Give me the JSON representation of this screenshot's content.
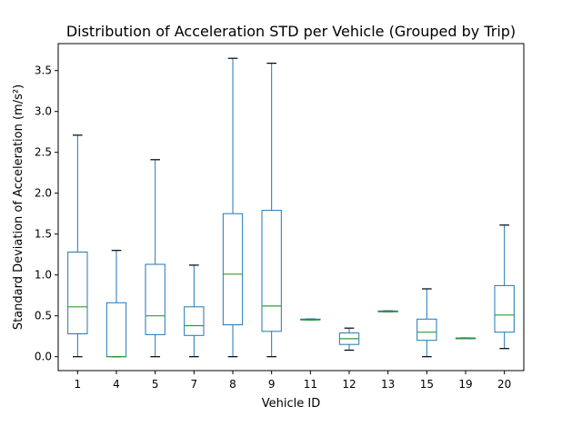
{
  "chart_data": {
    "type": "box",
    "title": "Distribution of Acceleration STD per Vehicle (Grouped by Trip)",
    "xlabel": "Vehicle ID",
    "ylabel": "Standard Deviation of Acceleration (m/s²)",
    "ylim": [
      -0.17,
      3.83
    ],
    "yticks": [
      0.0,
      0.5,
      1.0,
      1.5,
      2.0,
      2.5,
      3.0,
      3.5
    ],
    "ytick_labels": [
      "0.0",
      "0.5",
      "1.0",
      "1.5",
      "2.0",
      "2.5",
      "3.0",
      "3.5"
    ],
    "grid": false,
    "colors": {
      "box": "#1f77b4",
      "median": "#2ca02c",
      "whisker_cap": "#000000"
    },
    "categories": [
      "1",
      "4",
      "5",
      "7",
      "8",
      "9",
      "11",
      "12",
      "13",
      "15",
      "19",
      "20"
    ],
    "boxes": [
      {
        "label": "1",
        "whislo": 0.0,
        "q1": 0.28,
        "med": 0.61,
        "q3": 1.28,
        "whishi": 2.71
      },
      {
        "label": "4",
        "whislo": 0.0,
        "q1": 0.0,
        "med": 0.0,
        "q3": 0.66,
        "whishi": 1.3
      },
      {
        "label": "5",
        "whislo": 0.0,
        "q1": 0.27,
        "med": 0.5,
        "q3": 1.13,
        "whishi": 2.41
      },
      {
        "label": "7",
        "whislo": 0.0,
        "q1": 0.26,
        "med": 0.38,
        "q3": 0.61,
        "whishi": 1.12
      },
      {
        "label": "8",
        "whislo": 0.0,
        "q1": 0.39,
        "med": 1.01,
        "q3": 1.75,
        "whishi": 3.65
      },
      {
        "label": "9",
        "whislo": 0.0,
        "q1": 0.31,
        "med": 0.62,
        "q3": 1.79,
        "whishi": 3.59
      },
      {
        "label": "11",
        "whislo": 0.45,
        "q1": 0.45,
        "med": 0.45,
        "q3": 0.46,
        "whishi": 0.46
      },
      {
        "label": "12",
        "whislo": 0.08,
        "q1": 0.15,
        "med": 0.22,
        "q3": 0.29,
        "whishi": 0.35
      },
      {
        "label": "13",
        "whislo": 0.55,
        "q1": 0.55,
        "med": 0.55,
        "q3": 0.56,
        "whishi": 0.56
      },
      {
        "label": "15",
        "whislo": 0.0,
        "q1": 0.2,
        "med": 0.3,
        "q3": 0.46,
        "whishi": 0.83
      },
      {
        "label": "19",
        "whislo": 0.22,
        "q1": 0.22,
        "med": 0.22,
        "q3": 0.23,
        "whishi": 0.23
      },
      {
        "label": "20",
        "whislo": 0.1,
        "q1": 0.3,
        "med": 0.51,
        "q3": 0.87,
        "whishi": 1.61
      }
    ]
  }
}
